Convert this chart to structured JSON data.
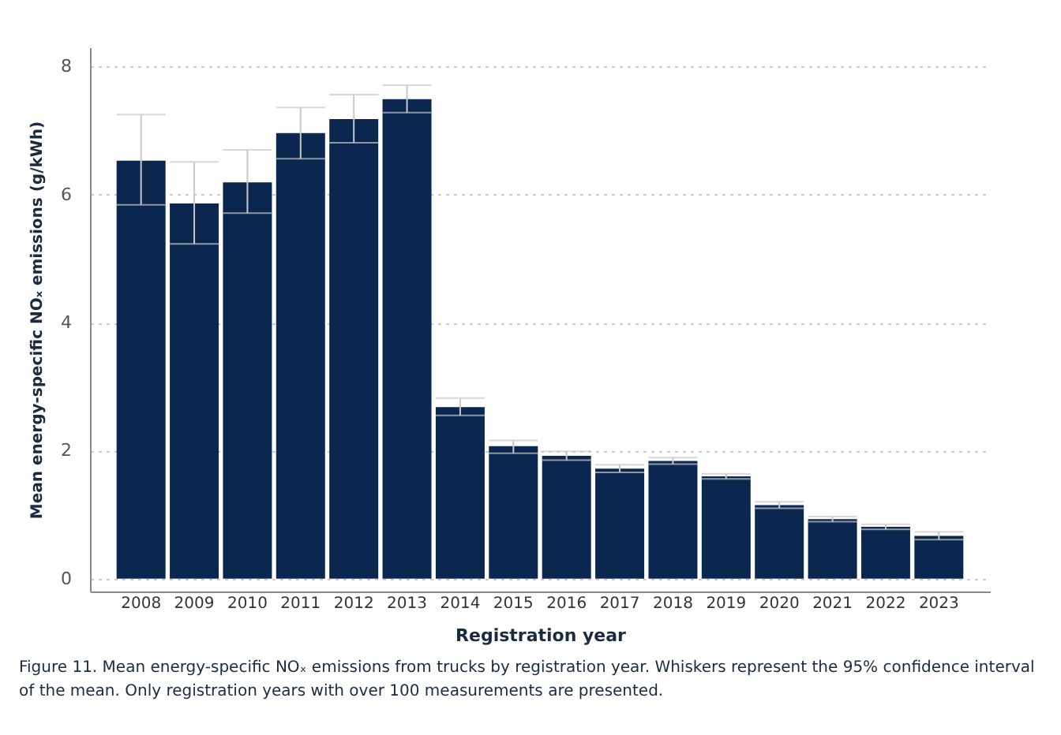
{
  "chart_data": {
    "type": "bar",
    "xlabel": "Registration year",
    "ylabel": "Mean energy-specific NOₓ emissions (g/kWh)",
    "categories": [
      "2008",
      "2009",
      "2010",
      "2011",
      "2012",
      "2013",
      "2014",
      "2015",
      "2016",
      "2017",
      "2018",
      "2019",
      "2020",
      "2021",
      "2022",
      "2023"
    ],
    "series": [
      {
        "color": "#0b2750",
        "values": [
          6.53,
          5.86,
          6.19,
          6.96,
          7.18,
          7.49,
          2.68,
          2.07,
          1.92,
          1.72,
          1.84,
          1.6,
          1.15,
          0.93,
          0.81,
          0.67
        ],
        "errors": [
          [
            5.84,
            7.25
          ],
          [
            5.23,
            6.51
          ],
          [
            5.71,
            6.7
          ],
          [
            6.56,
            7.36
          ],
          [
            6.81,
            7.56
          ],
          [
            7.28,
            7.71
          ],
          [
            2.55,
            2.82
          ],
          [
            1.96,
            2.16
          ],
          [
            1.85,
            1.99
          ],
          [
            1.66,
            1.78
          ],
          [
            1.79,
            1.89
          ],
          [
            1.56,
            1.64
          ],
          [
            1.1,
            1.2
          ],
          [
            0.89,
            0.97
          ],
          [
            0.77,
            0.85
          ],
          [
            0.61,
            0.73
          ]
        ]
      }
    ],
    "ylim": [
      -0.2,
      8.3
    ],
    "yticks": [
      0,
      2,
      4,
      6,
      8
    ],
    "grid": "y",
    "legend": false,
    "annotations": [
      "Figure 11. Mean energy-specific NOₓ emissions from trucks by registration year. Whiskers represent the 95% confidence interval of the mean. Only registration years with over 100 measurements are presented."
    ]
  }
}
